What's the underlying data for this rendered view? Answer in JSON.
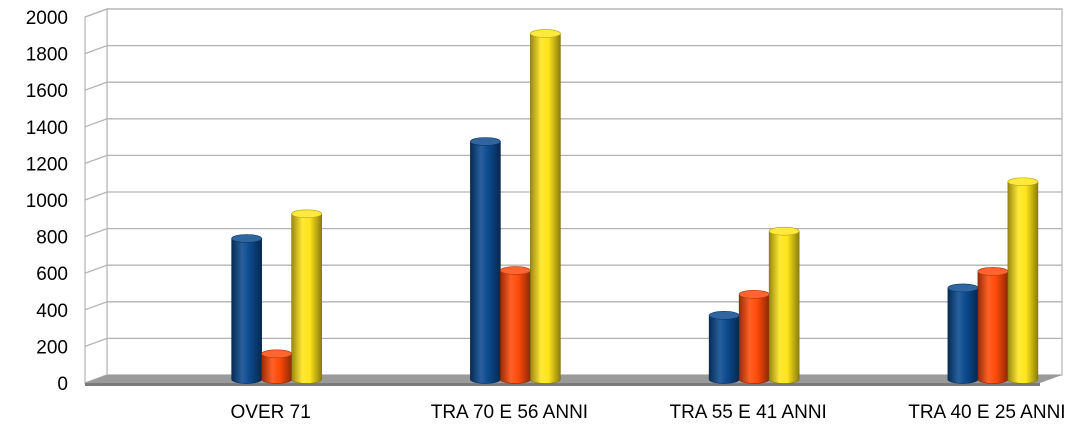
{
  "chart_data": {
    "type": "bar",
    "title": "",
    "xlabel": "",
    "ylabel": "",
    "categories": [
      "OVER 71",
      "TRA 70 E 56 ANNI",
      "TRA 55 E 41 ANNI",
      "TRA 40 E 25 ANNI"
    ],
    "series": [
      {
        "color": "#0b4a8f",
        "values": [
          770,
          1300,
          350,
          500
        ]
      },
      {
        "color": "#ff4a0a",
        "values": [
          140,
          595,
          465,
          590
        ]
      },
      {
        "color": "#ffe51a",
        "values": [
          905,
          1890,
          810,
          1080
        ]
      }
    ],
    "ylim": [
      0,
      2000
    ],
    "yticks": [
      "0",
      "200",
      "400",
      "600",
      "800",
      "1000",
      "1200",
      "1400",
      "1600",
      "1800",
      "2000"
    ],
    "grid": true,
    "legend": "none",
    "style": "3d-cylinder"
  }
}
